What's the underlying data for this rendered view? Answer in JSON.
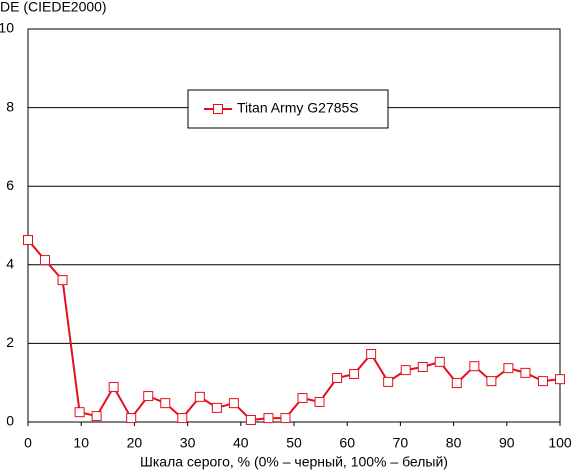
{
  "chart_data": {
    "type": "line",
    "y_label": "DE (CIEDE2000)",
    "x_label": "Шкала серого, % (0% – черный, 100% – белый)",
    "x": [
      0,
      3.2,
      6.5,
      9.7,
      12.9,
      16.1,
      19.4,
      22.6,
      25.8,
      29.0,
      32.3,
      35.5,
      38.7,
      41.9,
      45.2,
      48.4,
      51.6,
      54.8,
      58.1,
      61.3,
      64.5,
      67.7,
      71.0,
      74.2,
      77.4,
      80.6,
      83.9,
      87.1,
      90.3,
      93.5,
      96.8,
      100
    ],
    "series": [
      {
        "name": "Titan Army G2785S",
        "color": "#e4101c",
        "values": [
          4.63,
          4.12,
          3.61,
          0.25,
          0.15,
          0.89,
          0.1,
          0.66,
          0.48,
          0.1,
          0.64,
          0.36,
          0.48,
          0.05,
          0.1,
          0.1,
          0.61,
          0.51,
          1.12,
          1.22,
          1.73,
          1.02,
          1.32,
          1.4,
          1.53,
          0.99,
          1.42,
          1.04,
          1.37,
          1.25,
          1.04,
          1.09
        ]
      }
    ],
    "xlim": [
      0,
      100
    ],
    "xticks": [
      0,
      10,
      20,
      30,
      40,
      50,
      60,
      70,
      80,
      90,
      100
    ],
    "ylim": [
      0,
      10
    ],
    "yticks": [
      0,
      2,
      4,
      6,
      8,
      10
    ],
    "grid": true,
    "legend": "top"
  }
}
